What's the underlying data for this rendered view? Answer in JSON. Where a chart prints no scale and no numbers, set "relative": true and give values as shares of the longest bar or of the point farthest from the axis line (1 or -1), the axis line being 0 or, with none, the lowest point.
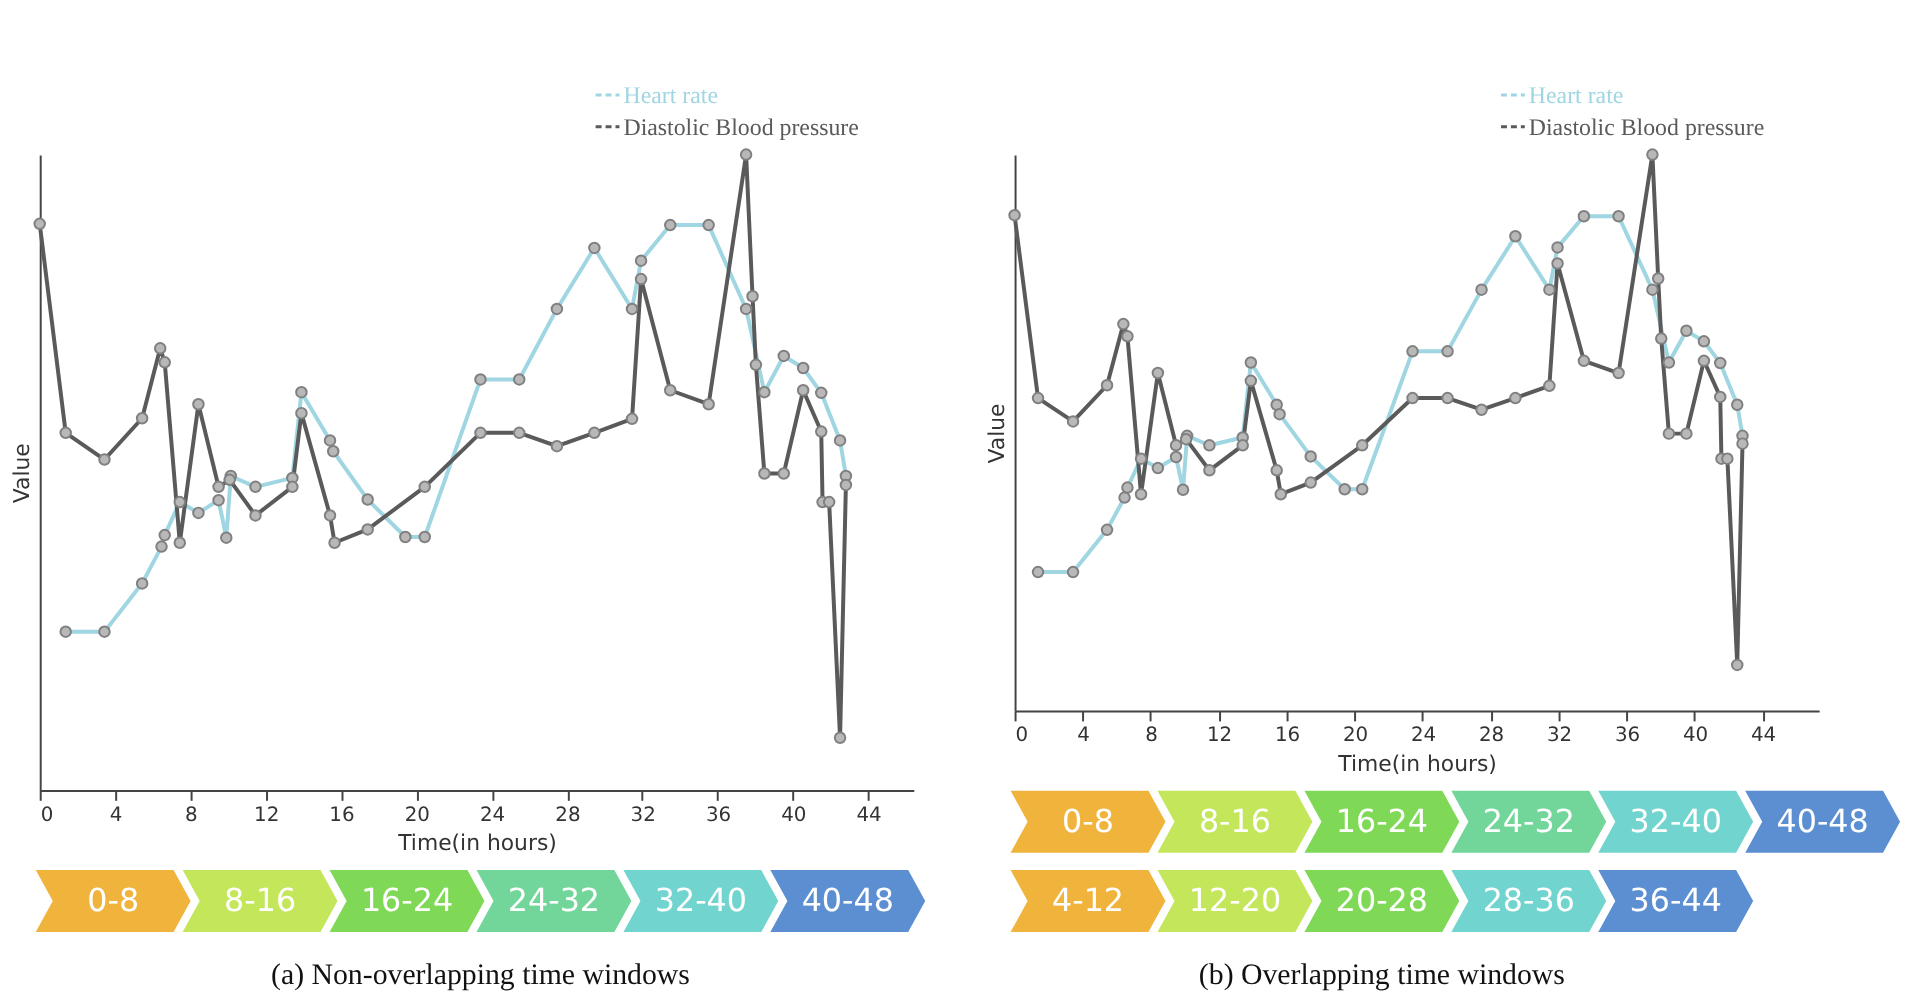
{
  "chart_data": [
    {
      "type": "line",
      "relative": true,
      "xlabel": "Time(in hours)",
      "ylabel": "Value",
      "xlim": [
        0,
        46.4
      ],
      "xticks": [
        0,
        4,
        8,
        12,
        16,
        20,
        24,
        28,
        32,
        36,
        40,
        44
      ],
      "legend": "top right",
      "marker": "circle",
      "grid": false,
      "series": [
        {
          "name": "Heart rate",
          "color": "#9fd6e2",
          "x": [
            1.38,
            3.44,
            5.44,
            6.47,
            6.64,
            7.44,
            8.43,
            9.5,
            9.91,
            10.15,
            11.46,
            13.42,
            13.9,
            15.42,
            15.59,
            17.42,
            19.42,
            20.45,
            23.41,
            25.47,
            27.47,
            29.46,
            31.46,
            31.94,
            33.49,
            35.53,
            37.52,
            38.49,
            39.52,
            40.55,
            41.51,
            42.51,
            42.82
          ],
          "values": [
            0.249,
            0.249,
            0.325,
            0.383,
            0.401,
            0.453,
            0.436,
            0.456,
            0.397,
            0.494,
            0.477,
            0.491,
            0.626,
            0.55,
            0.533,
            0.457,
            0.398,
            0.398,
            0.646,
            0.646,
            0.757,
            0.853,
            0.757,
            0.833,
            0.889,
            0.889,
            0.757,
            0.626,
            0.683,
            0.664,
            0.625,
            0.55,
            0.494
          ]
        },
        {
          "name": "Diastolic Blood pressure",
          "color": "#5a5a5a",
          "x": [
            0,
            1.38,
            3.44,
            5.44,
            6.4,
            6.64,
            7.44,
            8.43,
            9.5,
            10.09,
            11.46,
            13.42,
            13.9,
            15.42,
            15.66,
            17.42,
            20.45,
            23.41,
            25.47,
            27.47,
            29.46,
            31.46,
            31.94,
            33.49,
            35.53,
            37.52,
            37.86,
            38.04,
            38.49,
            39.52,
            40.55,
            41.51,
            41.58,
            41.93,
            42.51,
            42.82
          ],
          "values": [
            0.891,
            0.562,
            0.52,
            0.585,
            0.695,
            0.673,
            0.389,
            0.607,
            0.477,
            0.488,
            0.432,
            0.477,
            0.593,
            0.432,
            0.389,
            0.41,
            0.477,
            0.562,
            0.562,
            0.541,
            0.562,
            0.584,
            0.804,
            0.629,
            0.607,
            1.0,
            0.777,
            0.669,
            0.498,
            0.498,
            0.629,
            0.564,
            0.453,
            0.453,
            0.082,
            0.48
          ]
        }
      ]
    },
    {
      "type": "other",
      "categories": [
        "0-8",
        "8-16",
        "16-24",
        "24-32",
        "32-40",
        "40-48"
      ],
      "colors": [
        "#f0b43c",
        "#c3e65a",
        "#7fd957",
        "#72d69a",
        "#72d4cf",
        "#5b8fd2"
      ],
      "annotations": [
        "(a) Non-overlapping time windows"
      ]
    },
    {
      "type": "line",
      "relative": true,
      "xlabel": "Time(in hours)",
      "ylabel": "Value",
      "xlim": [
        0,
        47.3
      ],
      "xticks": [
        0,
        4,
        8,
        12,
        16,
        20,
        24,
        28,
        32,
        36,
        40,
        44
      ],
      "legend": "top right",
      "marker": "circle",
      "grid": false,
      "series": [
        {
          "name": "Heart rate",
          "color": "#9fd6e2",
          "x": [
            1.38,
            3.44,
            5.44,
            6.47,
            6.64,
            7.44,
            8.43,
            9.5,
            9.91,
            10.15,
            11.46,
            13.42,
            13.9,
            15.42,
            15.59,
            17.42,
            19.42,
            20.45,
            23.41,
            25.47,
            27.47,
            29.46,
            31.46,
            31.94,
            33.49,
            35.53,
            37.52,
            38.49,
            39.52,
            40.55,
            41.51,
            42.51,
            42.82
          ],
          "values": [
            0.249,
            0.249,
            0.325,
            0.383,
            0.401,
            0.453,
            0.436,
            0.456,
            0.397,
            0.494,
            0.477,
            0.491,
            0.626,
            0.55,
            0.533,
            0.457,
            0.398,
            0.398,
            0.646,
            0.646,
            0.757,
            0.853,
            0.757,
            0.833,
            0.889,
            0.889,
            0.757,
            0.626,
            0.683,
            0.664,
            0.625,
            0.55,
            0.494
          ]
        },
        {
          "name": "Diastolic Blood pressure",
          "color": "#5a5a5a",
          "x": [
            0,
            1.38,
            3.44,
            5.44,
            6.4,
            6.64,
            7.44,
            8.43,
            9.5,
            10.09,
            11.46,
            13.42,
            13.9,
            15.42,
            15.66,
            17.42,
            20.45,
            23.41,
            25.47,
            27.47,
            29.46,
            31.46,
            31.94,
            33.49,
            35.53,
            37.52,
            37.86,
            38.04,
            38.49,
            39.52,
            40.55,
            41.51,
            41.58,
            41.93,
            42.51,
            42.82
          ],
          "values": [
            0.891,
            0.562,
            0.52,
            0.585,
            0.695,
            0.673,
            0.389,
            0.607,
            0.477,
            0.488,
            0.432,
            0.477,
            0.593,
            0.432,
            0.389,
            0.41,
            0.477,
            0.562,
            0.562,
            0.541,
            0.562,
            0.584,
            0.804,
            0.629,
            0.607,
            1.0,
            0.777,
            0.669,
            0.498,
            0.498,
            0.629,
            0.564,
            0.453,
            0.453,
            0.082,
            0.48
          ]
        }
      ]
    },
    {
      "type": "other",
      "categories": [
        "0-8",
        "8-16",
        "16-24",
        "24-32",
        "32-40",
        "40-48"
      ],
      "colors": [
        "#f0b43c",
        "#c3e65a",
        "#7fd957",
        "#72d69a",
        "#72d4cf",
        "#5b8fd2"
      ]
    },
    {
      "type": "other",
      "categories": [
        "4-12",
        "12-20",
        "20-28",
        "28-36",
        "36-44"
      ],
      "colors": [
        "#f0b43c",
        "#c3e65a",
        "#7fd957",
        "#72d4cf",
        "#5b8fd2"
      ],
      "annotations": [
        "(b) Overlapping time windows"
      ]
    }
  ]
}
